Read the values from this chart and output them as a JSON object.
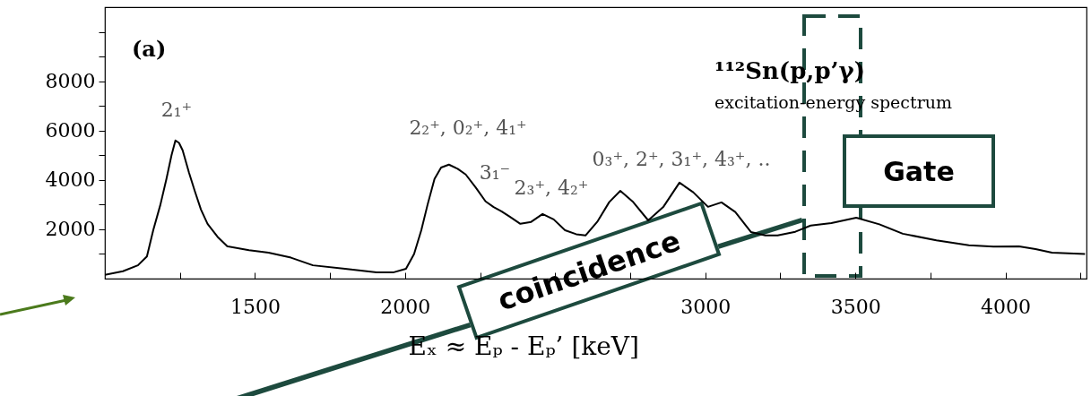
{
  "chart_data": {
    "type": "line",
    "title": "¹¹²Sn(p,p’γ)",
    "subtitle": "excitation-energy spectrum",
    "xlabel": "Eₓ ≈ Eₚ - Eₚ’  [keV]",
    "x": [
      1000,
      1060,
      1110,
      1140,
      1161,
      1185,
      1205,
      1222,
      1235,
      1247,
      1259,
      1280,
      1300,
      1320,
      1342,
      1375,
      1408,
      1480,
      1545,
      1620,
      1693,
      1800,
      1905,
      1960,
      2003,
      2030,
      2054,
      2075,
      2098,
      2120,
      2146,
      2175,
      2202,
      2235,
      2268,
      2295,
      2321,
      2350,
      2384,
      2420,
      2458,
      2495,
      2533,
      2570,
      2601,
      2640,
      2680,
      2717,
      2760,
      2810,
      2860,
      2914,
      2960,
      3009,
      3054,
      3100,
      3152,
      3200,
      3241,
      3300,
      3351,
      3420,
      3503,
      3580,
      3658,
      3770,
      3878,
      3960,
      4045,
      4100,
      4155,
      4265
    ],
    "series": [
      {
        "color": "#000000",
        "values": [
          150,
          300,
          540,
          900,
          1960,
          3000,
          4040,
          5000,
          5600,
          5500,
          5200,
          4300,
          3530,
          2800,
          2220,
          1700,
          1310,
          1150,
          1050,
          850,
          540,
          400,
          250,
          250,
          400,
          1000,
          1960,
          3000,
          4040,
          4500,
          4620,
          4450,
          4220,
          3700,
          3130,
          2900,
          2730,
          2500,
          2220,
          2300,
          2620,
          2400,
          1960,
          1800,
          1750,
          2300,
          3100,
          3560,
          3100,
          2360,
          2900,
          3890,
          3500,
          2910,
          3090,
          2700,
          1890,
          1750,
          1750,
          1900,
          2150,
          2250,
          2470,
          2200,
          1820,
          1550,
          1350,
          1300,
          1310,
          1200,
          1050,
          1000
        ]
      }
    ],
    "xlim": [
      1000,
      4270
    ],
    "ylim": [
      0,
      11000
    ],
    "xticks": [
      {
        "value": 1250,
        "label": null
      },
      1500,
      {
        "value": 1750,
        "label": null
      },
      2000,
      {
        "value": 2250,
        "label": null
      },
      {
        "value": 2500,
        "label": null
      },
      {
        "value": 2750,
        "label": null
      },
      3000,
      {
        "value": 3250,
        "label": null
      },
      3500,
      {
        "value": 3750,
        "label": null
      },
      4000,
      {
        "value": 4250,
        "label": null
      }
    ],
    "yticks": [
      {
        "value": 1000,
        "label": null
      },
      2000,
      {
        "value": 3000,
        "label": null
      },
      4000,
      {
        "value": 5000,
        "label": null
      },
      6000,
      {
        "value": 7000,
        "label": null
      },
      8000,
      {
        "value": 9000,
        "label": null
      },
      {
        "value": 10000,
        "label": null
      }
    ],
    "grid": false,
    "marker": "none",
    "line_style": "solid",
    "annotations": [
      "(a)",
      "coincidence",
      "Gate",
      "2₁⁺",
      "2₂⁺, 0₂⁺, 4₁⁺",
      "3₁⁻",
      "2₃⁺, 4₂⁺",
      "0₃⁺, 2⁺, 3₁⁺, 4₃⁺, .."
    ]
  }
}
